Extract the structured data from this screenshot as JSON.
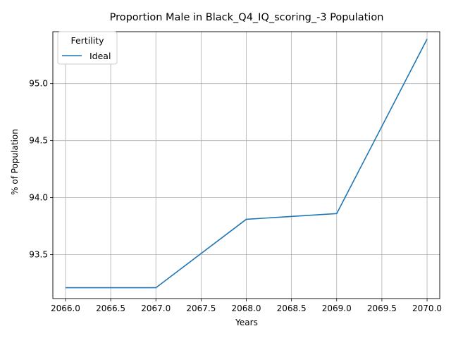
{
  "chart_data": {
    "type": "line",
    "title": "Proportion Male in Black_Q4_IQ_scoring_-3 Population",
    "xlabel": "Years",
    "ylabel": "% of Population",
    "xlim": [
      2065.86,
      2070.14
    ],
    "ylim": [
      93.115,
      95.455
    ],
    "xticks": [
      2066.0,
      2066.5,
      2067.0,
      2067.5,
      2068.0,
      2068.5,
      2069.0,
      2069.5,
      2070.0
    ],
    "xtick_labels": [
      "2066.0",
      "2066.5",
      "2067.0",
      "2067.5",
      "2068.0",
      "2068.5",
      "2069.0",
      "2069.5",
      "2070.0"
    ],
    "yticks": [
      93.5,
      94.0,
      94.5,
      95.0
    ],
    "ytick_labels": [
      "93.5",
      "94.0",
      "94.5",
      "95.0"
    ],
    "grid": true,
    "legend": {
      "title": "Fertility",
      "placement": "top-left"
    },
    "series": [
      {
        "name": "Ideal",
        "color": "#1f77b4",
        "x": [
          2066,
          2067,
          2068,
          2069,
          2070
        ],
        "y": [
          93.21,
          93.21,
          93.81,
          93.86,
          95.39
        ]
      }
    ]
  }
}
